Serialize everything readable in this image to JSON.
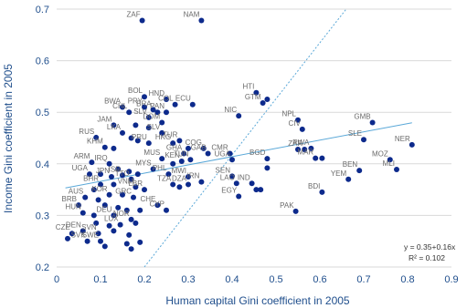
{
  "chart_data": {
    "type": "scatter",
    "title": "",
    "xlabel": "Human capital Gini coefficient in 2005",
    "ylabel": "Income Gini coefficient in 2005",
    "xlim": [
      0,
      0.9
    ],
    "ylim": [
      0.2,
      0.7
    ],
    "xticks": [
      "0",
      "0.1",
      "0.2",
      "0.3",
      "0.4",
      "0.5",
      "0.6",
      "0.7",
      "0.8",
      "0.9"
    ],
    "yticks": [
      "0.2",
      "0.3",
      "0.4",
      "0.5",
      "0.6",
      "0.7"
    ],
    "grid": "horizontal",
    "trendline": {
      "intercept": 0.35,
      "slope": 0.16,
      "x_range": [
        0.02,
        0.81
      ]
    },
    "equation_text": "y = 0.35+0.16x",
    "r2_text": "R² = 0.102",
    "reference_line": {
      "label": "",
      "from": [
        0.2,
        0.2
      ],
      "to": [
        0.66,
        0.7
      ]
    },
    "colors": {
      "point": "#0d2a8c",
      "trend": "#5aa8d8",
      "reference": "#5aa8d8",
      "grid": "#d9d9d9",
      "axis_text": "#1f4e8c"
    },
    "points": [
      {
        "x": 0.195,
        "y": 0.678,
        "label": "ZAF"
      },
      {
        "x": 0.33,
        "y": 0.678,
        "label": "NAM"
      },
      {
        "x": 0.455,
        "y": 0.538,
        "label": "HTI"
      },
      {
        "x": 0.47,
        "y": 0.518,
        "label": "GTM"
      },
      {
        "x": 0.48,
        "y": 0.525,
        "label": ""
      },
      {
        "x": 0.415,
        "y": 0.493,
        "label": "NIC"
      },
      {
        "x": 0.72,
        "y": 0.48,
        "label": "GMB"
      },
      {
        "x": 0.55,
        "y": 0.485,
        "label": "NPL"
      },
      {
        "x": 0.56,
        "y": 0.467,
        "label": "CIV"
      },
      {
        "x": 0.7,
        "y": 0.447,
        "label": "SLE"
      },
      {
        "x": 0.81,
        "y": 0.437,
        "label": "NER"
      },
      {
        "x": 0.565,
        "y": 0.428,
        "label": "ZAR"
      },
      {
        "x": 0.55,
        "y": 0.428,
        "label": ""
      },
      {
        "x": 0.58,
        "y": 0.43,
        "label": "RWA"
      },
      {
        "x": 0.59,
        "y": 0.411,
        "label": "MAR"
      },
      {
        "x": 0.605,
        "y": 0.411,
        "label": ""
      },
      {
        "x": 0.76,
        "y": 0.408,
        "label": "MOZ"
      },
      {
        "x": 0.665,
        "y": 0.37,
        "label": "YEM"
      },
      {
        "x": 0.69,
        "y": 0.387,
        "label": "BEN"
      },
      {
        "x": 0.775,
        "y": 0.389,
        "label": "MLI"
      },
      {
        "x": 0.48,
        "y": 0.41,
        "label": "BGD"
      },
      {
        "x": 0.48,
        "y": 0.392,
        "label": ""
      },
      {
        "x": 0.395,
        "y": 0.42,
        "label": "CMR"
      },
      {
        "x": 0.4,
        "y": 0.408,
        "label": "UGA"
      },
      {
        "x": 0.4,
        "y": 0.376,
        "label": "SEN"
      },
      {
        "x": 0.41,
        "y": 0.362,
        "label": "LAO"
      },
      {
        "x": 0.445,
        "y": 0.362,
        "label": "IND"
      },
      {
        "x": 0.455,
        "y": 0.35,
        "label": ""
      },
      {
        "x": 0.465,
        "y": 0.35,
        "label": ""
      },
      {
        "x": 0.415,
        "y": 0.337,
        "label": "EGY"
      },
      {
        "x": 0.605,
        "y": 0.345,
        "label": "BDI"
      },
      {
        "x": 0.545,
        "y": 0.308,
        "label": "PAK"
      },
      {
        "x": 0.2,
        "y": 0.53,
        "label": "BOL"
      },
      {
        "x": 0.25,
        "y": 0.525,
        "label": "HND"
      },
      {
        "x": 0.27,
        "y": 0.515,
        "label": "COL"
      },
      {
        "x": 0.31,
        "y": 0.515,
        "label": "ECU"
      },
      {
        "x": 0.15,
        "y": 0.51,
        "label": "BWA"
      },
      {
        "x": 0.2,
        "y": 0.51,
        "label": "PRY"
      },
      {
        "x": 0.22,
        "y": 0.505,
        "label": "BRA"
      },
      {
        "x": 0.23,
        "y": 0.5,
        "label": ""
      },
      {
        "x": 0.25,
        "y": 0.5,
        "label": "PAN"
      },
      {
        "x": 0.165,
        "y": 0.5,
        "label": "CHL"
      },
      {
        "x": 0.21,
        "y": 0.49,
        "label": "SLV"
      },
      {
        "x": 0.24,
        "y": 0.48,
        "label": "DOM"
      },
      {
        "x": 0.18,
        "y": 0.475,
        "label": ""
      },
      {
        "x": 0.13,
        "y": 0.475,
        "label": "JAM"
      },
      {
        "x": 0.21,
        "y": 0.47,
        "label": ""
      },
      {
        "x": 0.24,
        "y": 0.46,
        "label": "SLV"
      },
      {
        "x": 0.15,
        "y": 0.46,
        "label": "LKA"
      },
      {
        "x": 0.09,
        "y": 0.451,
        "label": "RUS"
      },
      {
        "x": 0.11,
        "y": 0.432,
        "label": "KHM"
      },
      {
        "x": 0.13,
        "y": 0.43,
        "label": ""
      },
      {
        "x": 0.17,
        "y": 0.45,
        "label": ""
      },
      {
        "x": 0.185,
        "y": 0.445,
        "label": ""
      },
      {
        "x": 0.21,
        "y": 0.44,
        "label": "PRU"
      },
      {
        "x": 0.265,
        "y": 0.44,
        "label": "HKG"
      },
      {
        "x": 0.28,
        "y": 0.445,
        "label": "TUR"
      },
      {
        "x": 0.3,
        "y": 0.43,
        "label": ""
      },
      {
        "x": 0.29,
        "y": 0.42,
        "label": "GHA"
      },
      {
        "x": 0.345,
        "y": 0.42,
        "label": "GAB"
      },
      {
        "x": 0.335,
        "y": 0.43,
        "label": "COG"
      },
      {
        "x": 0.305,
        "y": 0.408,
        "label": "TUN"
      },
      {
        "x": 0.285,
        "y": 0.405,
        "label": "KEN"
      },
      {
        "x": 0.24,
        "y": 0.41,
        "label": "MUS"
      },
      {
        "x": 0.265,
        "y": 0.4,
        "label": ""
      },
      {
        "x": 0.22,
        "y": 0.39,
        "label": "MYS"
      },
      {
        "x": 0.255,
        "y": 0.38,
        "label": "PHL"
      },
      {
        "x": 0.3,
        "y": 0.375,
        "label": "MWI"
      },
      {
        "x": 0.33,
        "y": 0.365,
        "label": "IRN"
      },
      {
        "x": 0.265,
        "y": 0.36,
        "label": "TZA"
      },
      {
        "x": 0.28,
        "y": 0.355,
        "label": ""
      },
      {
        "x": 0.3,
        "y": 0.36,
        "label": "DZA"
      },
      {
        "x": 0.23,
        "y": 0.32,
        "label": "CHE"
      },
      {
        "x": 0.25,
        "y": 0.31,
        "label": "CYP"
      },
      {
        "x": 0.08,
        "y": 0.403,
        "label": "ARM"
      },
      {
        "x": 0.12,
        "y": 0.4,
        "label": "IRQ"
      },
      {
        "x": 0.14,
        "y": 0.39,
        "label": ""
      },
      {
        "x": 0.165,
        "y": 0.385,
        "label": ""
      },
      {
        "x": 0.075,
        "y": 0.38,
        "label": "UGA"
      },
      {
        "x": 0.1,
        "y": 0.38,
        "label": ""
      },
      {
        "x": 0.125,
        "y": 0.375,
        "label": "JPN"
      },
      {
        "x": 0.15,
        "y": 0.378,
        "label": "ISR"
      },
      {
        "x": 0.17,
        "y": 0.37,
        "label": "TTO"
      },
      {
        "x": 0.185,
        "y": 0.38,
        "label": ""
      },
      {
        "x": 0.1,
        "y": 0.36,
        "label": "BHR"
      },
      {
        "x": 0.13,
        "y": 0.36,
        "label": ""
      },
      {
        "x": 0.18,
        "y": 0.355,
        "label": "VNM"
      },
      {
        "x": 0.2,
        "y": 0.35,
        "label": "LBR"
      },
      {
        "x": 0.085,
        "y": 0.35,
        "label": ""
      },
      {
        "x": 0.12,
        "y": 0.34,
        "label": "KOR"
      },
      {
        "x": 0.15,
        "y": 0.34,
        "label": ""
      },
      {
        "x": 0.175,
        "y": 0.335,
        "label": "GRC"
      },
      {
        "x": 0.065,
        "y": 0.335,
        "label": "AUS"
      },
      {
        "x": 0.095,
        "y": 0.33,
        "label": ""
      },
      {
        "x": 0.05,
        "y": 0.32,
        "label": "BRB"
      },
      {
        "x": 0.11,
        "y": 0.32,
        "label": ""
      },
      {
        "x": 0.14,
        "y": 0.315,
        "label": ""
      },
      {
        "x": 0.16,
        "y": 0.31,
        "label": ""
      },
      {
        "x": 0.19,
        "y": 0.31,
        "label": ""
      },
      {
        "x": 0.06,
        "y": 0.305,
        "label": "HUN"
      },
      {
        "x": 0.085,
        "y": 0.3,
        "label": ""
      },
      {
        "x": 0.13,
        "y": 0.3,
        "label": "DEU"
      },
      {
        "x": 0.17,
        "y": 0.292,
        "label": "NOR"
      },
      {
        "x": 0.09,
        "y": 0.285,
        "label": ""
      },
      {
        "x": 0.12,
        "y": 0.28,
        "label": ""
      },
      {
        "x": 0.145,
        "y": 0.282,
        "label": "LUX"
      },
      {
        "x": 0.18,
        "y": 0.285,
        "label": ""
      },
      {
        "x": 0.035,
        "y": 0.265,
        "label": "CZE"
      },
      {
        "x": 0.06,
        "y": 0.27,
        "label": "DEN"
      },
      {
        "x": 0.095,
        "y": 0.265,
        "label": "SVN"
      },
      {
        "x": 0.13,
        "y": 0.27,
        "label": ""
      },
      {
        "x": 0.165,
        "y": 0.262,
        "label": ""
      },
      {
        "x": 0.025,
        "y": 0.255,
        "label": ""
      },
      {
        "x": 0.07,
        "y": 0.25,
        "label": "SVK"
      },
      {
        "x": 0.1,
        "y": 0.25,
        "label": "SWE"
      },
      {
        "x": 0.16,
        "y": 0.245,
        "label": ""
      },
      {
        "x": 0.19,
        "y": 0.248,
        "label": ""
      },
      {
        "x": 0.11,
        "y": 0.24,
        "label": ""
      },
      {
        "x": 0.17,
        "y": 0.235,
        "label": ""
      }
    ]
  }
}
